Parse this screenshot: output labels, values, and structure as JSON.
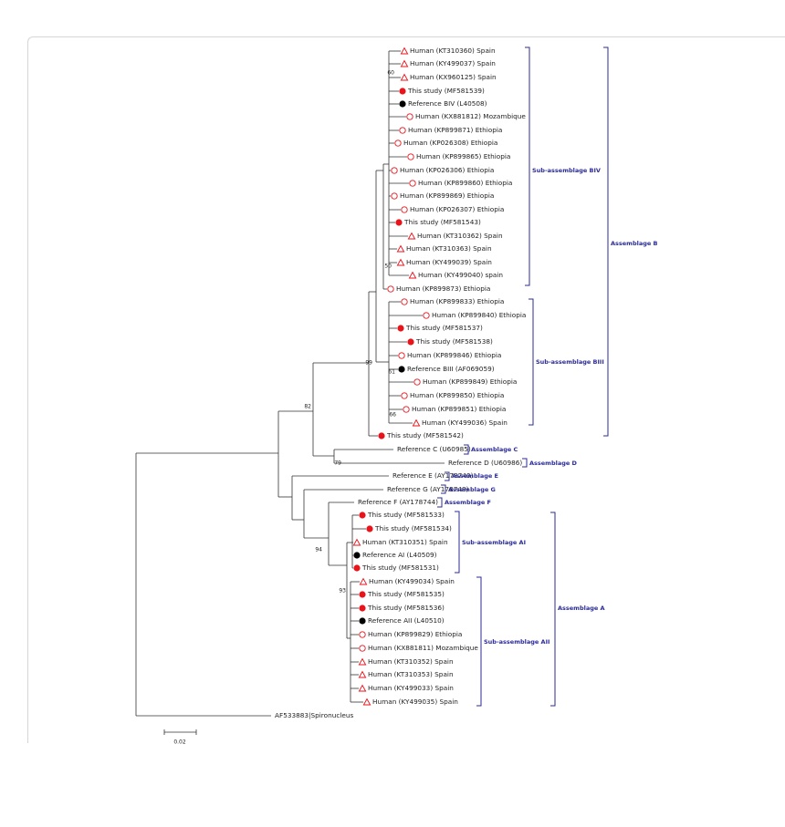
{
  "tree": {
    "leaves": [
      {
        "label": "Human (KT310360) Spain",
        "symbol": "open-triangle"
      },
      {
        "label": "Human (KY499037) Spain",
        "symbol": "open-triangle"
      },
      {
        "label": "Human (KX960125) Spain",
        "symbol": "open-triangle"
      },
      {
        "label": "This study (MF581539)",
        "symbol": "red-dot"
      },
      {
        "label": "Reference BIV (L40508)",
        "symbol": "black-dot"
      },
      {
        "label": "Human (KX881812) Mozambique",
        "symbol": "open-circle"
      },
      {
        "label": "Human (KP899871) Ethiopia",
        "symbol": "open-circle"
      },
      {
        "label": "Human (KP026308) Ethiopia",
        "symbol": "open-circle"
      },
      {
        "label": "Human (KP899865) Ethiopia",
        "symbol": "open-circle"
      },
      {
        "label": "Human (KP026306) Ethiopia",
        "symbol": "open-circle"
      },
      {
        "label": "Human (KP899860) Ethiopia",
        "symbol": "open-circle"
      },
      {
        "label": "Human (KP899869) Ethiopia",
        "symbol": "open-circle"
      },
      {
        "label": "Human (KP026307) Ethiopia",
        "symbol": "open-circle"
      },
      {
        "label": "This study (MF581543)",
        "symbol": "red-dot"
      },
      {
        "label": "Human (KT310362) Spain",
        "symbol": "open-triangle"
      },
      {
        "label": "Human (KT310363) Spain",
        "symbol": "open-triangle"
      },
      {
        "label": "Human (KY499039) Spain",
        "symbol": "open-triangle"
      },
      {
        "label": "Human (KY499040) spain",
        "symbol": "open-triangle"
      },
      {
        "label": "Human (KP899873) Ethiopia",
        "symbol": "open-circle"
      },
      {
        "label": "Human (KP899833) Ethiopia",
        "symbol": "open-circle"
      },
      {
        "label": "Human (KP899840) Ethiopia",
        "symbol": "open-circle"
      },
      {
        "label": "This study (MF581537)",
        "symbol": "red-dot"
      },
      {
        "label": "This study (MF581538)",
        "symbol": "red-dot"
      },
      {
        "label": "Human (KP899846) Ethiopia",
        "symbol": "open-circle"
      },
      {
        "label": "Reference BIII (AF069059)",
        "symbol": "black-dot"
      },
      {
        "label": "Human (KP899849) Ethiopia",
        "symbol": "open-circle"
      },
      {
        "label": "Human (KP899850) Ethiopia",
        "symbol": "open-circle"
      },
      {
        "label": "Human (KP899851) Ethiopia",
        "symbol": "open-circle"
      },
      {
        "label": "Human (KY499036) Spain",
        "symbol": "open-triangle"
      },
      {
        "label": "This study (MF581542)",
        "symbol": "red-dot"
      },
      {
        "label": "Reference C (U60985)"
      },
      {
        "label": "Reference D (U60986)"
      },
      {
        "label": "Reference E (AY178740)"
      },
      {
        "label": "Reference G (AY178748)"
      },
      {
        "label": "Reference F (AY178744)"
      },
      {
        "label": "This study (MF581533)",
        "symbol": "red-dot"
      },
      {
        "label": "This study (MF581534)",
        "symbol": "red-dot"
      },
      {
        "label": "Human (KT310351) Spain",
        "symbol": "open-triangle"
      },
      {
        "label": "Reference AI (L40509)",
        "symbol": "black-dot"
      },
      {
        "label": "This study (MF581531)",
        "symbol": "red-dot"
      },
      {
        "label": "Human (KY499034) Spain",
        "symbol": "open-triangle"
      },
      {
        "label": "This study (MF581535)",
        "symbol": "red-dot"
      },
      {
        "label": "This study (MF581536)",
        "symbol": "red-dot"
      },
      {
        "label": "Reference AII (L40510)",
        "symbol": "black-dot"
      },
      {
        "label": "Human (KP899829) Ethiopia",
        "symbol": "open-circle"
      },
      {
        "label": "Human (KX881811) Mozambique",
        "symbol": "open-circle"
      },
      {
        "label": "Human (KT310352) Spain",
        "symbol": "open-triangle"
      },
      {
        "label": "Human (KT310353) Spain",
        "symbol": "open-triangle"
      },
      {
        "label": "Human (KY499033) Spain",
        "symbol": "open-triangle"
      },
      {
        "label": "Human (KY499035) Spain",
        "symbol": "open-triangle"
      },
      {
        "label": "AF533883|Spironucleus"
      }
    ],
    "bootstrap": [
      "60",
      "50",
      "99",
      "61",
      "66",
      "82",
      "79",
      "94",
      "93"
    ],
    "groups": [
      "Sub-assemblage BIV",
      "Assemblage B",
      "Sub-assemblage BIII",
      "Assemblage C",
      "Assemblage D",
      "Assemblage E",
      "Assemblage G",
      "Assemblage F",
      "Sub-assemblage AI",
      "Assemblage A",
      "Sub-assemblage AII"
    ],
    "scale_bar": "0.02",
    "symbol_colors": {
      "red-dot": "#e8141b",
      "black-dot": "#000000",
      "open-circle": "#e8141b",
      "open-triangle": "#e8141b"
    },
    "group_color": "#2b2b9a"
  }
}
